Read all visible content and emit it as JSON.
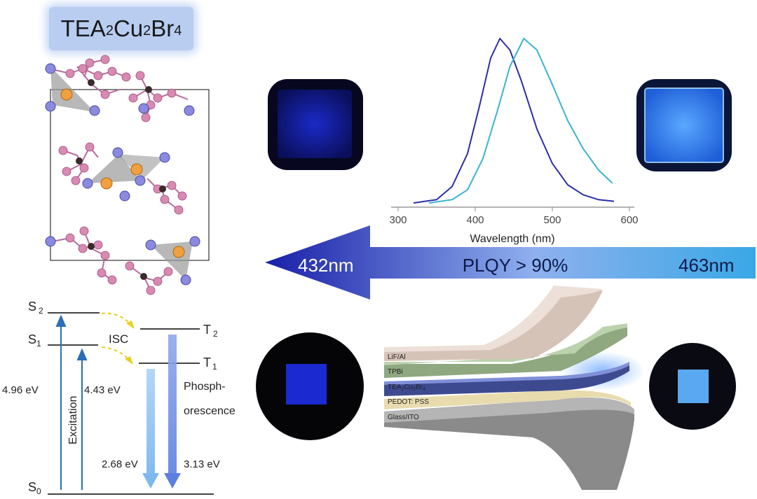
{
  "title": {
    "p1": "TEA",
    "s1": "2",
    "p2": "Cu",
    "s2": "2",
    "p3": "Br",
    "s3": "4"
  },
  "energy_levels": {
    "S2": {
      "base": "S",
      "sub": "2"
    },
    "S1": {
      "base": "S",
      "sub": "1"
    },
    "S0": {
      "base": "S",
      "sub": "0"
    },
    "T2": {
      "base": "T",
      "sub": "2"
    },
    "T1": {
      "base": "T",
      "sub": "1"
    },
    "isc": "ISC",
    "excitation": "Excitation",
    "phosph_line1": "Phosph-",
    "phosph_line2": "orescence",
    "e_s2": "4.96 eV",
    "e_s1": "4.43 eV",
    "e_t1": "2.68 eV",
    "e_t2": "3.13 eV"
  },
  "chart_data": {
    "type": "line",
    "xlabel": "Wavelength (nm)",
    "xlim": [
      300,
      600
    ],
    "x_ticks": [
      300,
      400,
      500,
      600
    ],
    "series": [
      {
        "color": "#2b2fa8",
        "peak": 432,
        "points": [
          [
            320,
            0
          ],
          [
            350,
            0.02
          ],
          [
            370,
            0.1
          ],
          [
            390,
            0.3
          ],
          [
            405,
            0.58
          ],
          [
            420,
            0.88
          ],
          [
            432,
            1.0
          ],
          [
            445,
            0.93
          ],
          [
            460,
            0.74
          ],
          [
            480,
            0.45
          ],
          [
            500,
            0.24
          ],
          [
            520,
            0.11
          ],
          [
            540,
            0.05
          ],
          [
            560,
            0.02
          ],
          [
            580,
            0.01
          ]
        ]
      },
      {
        "color": "#3bb3d0",
        "peak": 463,
        "points": [
          [
            340,
            0
          ],
          [
            370,
            0.02
          ],
          [
            390,
            0.08
          ],
          [
            410,
            0.27
          ],
          [
            430,
            0.58
          ],
          [
            445,
            0.83
          ],
          [
            463,
            1.0
          ],
          [
            480,
            0.93
          ],
          [
            500,
            0.72
          ],
          [
            520,
            0.5
          ],
          [
            540,
            0.33
          ],
          [
            560,
            0.2
          ],
          [
            578,
            0.12
          ]
        ]
      }
    ]
  },
  "arrow": {
    "left_label": "432nm",
    "center_label": "PLQY > 90%",
    "right_label": "463nm",
    "color_left": "#1a1fa8",
    "color_right": "#3aa8e6"
  },
  "device_layers": {
    "lif": "LiF/Al",
    "tpbi": "TPBi",
    "tea": {
      "p1": "TEA",
      "s1": "2",
      "p2": "Cu",
      "s2": "2",
      "p3": "Br",
      "s3": "4"
    },
    "pedot": "PEDOT: PSS",
    "glass": "Glass/ITO"
  }
}
